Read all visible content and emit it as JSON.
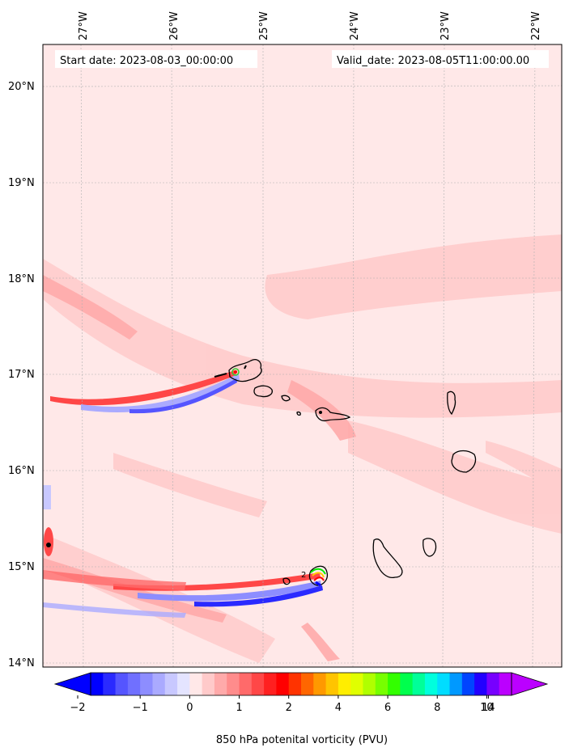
{
  "header": {
    "start_label": "Start date: 2023-08-03_00:00:00",
    "valid_label": "Valid_date: 2023-08-05T11:00:00.00"
  },
  "map": {
    "lon_labels": [
      "27°W",
      "26°W",
      "25°W",
      "24°W",
      "23°W",
      "22°W"
    ],
    "lat_labels": [
      "20°N",
      "19°N",
      "18°N",
      "17°N",
      "16°N",
      "15°N",
      "14°N"
    ],
    "background_color": "#ffe8e8",
    "contour_label": "2"
  },
  "colorbar": {
    "title": "850 hPa potenital vorticity (PVU)",
    "tick_labels": [
      "−2",
      "−1",
      "0",
      "1",
      "2",
      "4",
      "6",
      "8",
      "10",
      "14"
    ],
    "colors": [
      "#0000ff",
      "#2a2aff",
      "#5555ff",
      "#7070ff",
      "#8d8dff",
      "#aaaaff",
      "#c8c8ff",
      "#e4e4ff",
      "#ffe8e8",
      "#ffcaca",
      "#ffaaaa",
      "#ff8c8c",
      "#ff6a6a",
      "#ff4747",
      "#ff2020",
      "#ff0000",
      "#ff3300",
      "#ff6600",
      "#ff9900",
      "#ffc400",
      "#ffee00",
      "#e0ff00",
      "#b0ff00",
      "#77ff00",
      "#33ff00",
      "#00ff4d",
      "#00ff99",
      "#00ffdd",
      "#00ddff",
      "#0099ff",
      "#0044ff",
      "#2200ff",
      "#7700ff",
      "#bb00ff"
    ]
  }
}
